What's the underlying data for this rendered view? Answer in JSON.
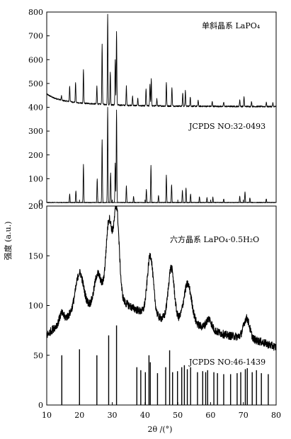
{
  "chart_data": {
    "type": "line",
    "xlabel": "2θ /(°)",
    "ylabel": "强度 (a.u.)",
    "xlim": [
      10,
      80
    ],
    "x_ticks": [
      "10",
      "20",
      "30",
      "40",
      "50",
      "60",
      "70",
      "80"
    ],
    "colors": {
      "line": "#000000",
      "background": "#ffffff"
    },
    "panels": [
      {
        "name": "top",
        "ylim": [
          0,
          800
        ],
        "y_ticks": [
          "0",
          "100",
          "200",
          "300",
          "400",
          "500",
          "600",
          "700",
          "800"
        ],
        "series": [
          {
            "name": "单斜晶系 LaPO₄",
            "kind": "pattern",
            "baseline": [
              [
                10,
                455
              ],
              [
                12,
                440
              ],
              [
                15,
                428
              ],
              [
                20,
                418
              ],
              [
                30,
                410
              ],
              [
                40,
                406
              ],
              [
                60,
                404
              ],
              [
                80,
                403
              ]
            ],
            "noise": 3,
            "peaks": [
              [
                14.5,
                18
              ],
              [
                17.0,
                65
              ],
              [
                18.8,
                85
              ],
              [
                21.2,
                140
              ],
              [
                25.3,
                75
              ],
              [
                26.9,
                250
              ],
              [
                28.6,
                380
              ],
              [
                29.4,
                140
              ],
              [
                30.9,
                190
              ],
              [
                31.3,
                310
              ],
              [
                34.3,
                80
              ],
              [
                36.2,
                40
              ],
              [
                37.8,
                30
              ],
              [
                40.3,
                70
              ],
              [
                41.5,
                90
              ],
              [
                41.9,
                115
              ],
              [
                43.6,
                30
              ],
              [
                46.5,
                100
              ],
              [
                48.2,
                80
              ],
              [
                51.5,
                55
              ],
              [
                52.3,
                65
              ],
              [
                53.8,
                40
              ],
              [
                56.2,
                25
              ],
              [
                60.5,
                20
              ],
              [
                64.0,
                18
              ],
              [
                68.9,
                28
              ],
              [
                70.2,
                40
              ],
              [
                72.5,
                22
              ],
              [
                77.0,
                18
              ],
              [
                79.0,
                15
              ]
            ]
          },
          {
            "name": "JCPDS NO:32-0493",
            "kind": "pattern",
            "baseline": [
              [
                10,
                0
              ],
              [
                80,
                0
              ]
            ],
            "noise": 1.5,
            "peaks": [
              [
                17.0,
                35
              ],
              [
                18.9,
                50
              ],
              [
                21.2,
                160
              ],
              [
                25.4,
                100
              ],
              [
                26.9,
                265
              ],
              [
                28.6,
                400
              ],
              [
                29.5,
                125
              ],
              [
                30.9,
                165
              ],
              [
                31.3,
                390
              ],
              [
                34.3,
                70
              ],
              [
                36.5,
                25
              ],
              [
                40.4,
                55
              ],
              [
                41.8,
                155
              ],
              [
                44.1,
                30
              ],
              [
                46.5,
                115
              ],
              [
                48.1,
                75
              ],
              [
                51.4,
                50
              ],
              [
                52.5,
                60
              ],
              [
                53.9,
                35
              ],
              [
                56.6,
                25
              ],
              [
                58.9,
                20
              ],
              [
                60.7,
                22
              ],
              [
                64.0,
                15
              ],
              [
                68.9,
                25
              ],
              [
                70.5,
                45
              ],
              [
                72.0,
                20
              ],
              [
                77.0,
                15
              ]
            ]
          }
        ]
      },
      {
        "name": "bottom",
        "ylim": [
          0,
          200
        ],
        "y_ticks": [
          "0",
          "50",
          "100",
          "150",
          "200"
        ],
        "series": [
          {
            "name": "六方晶系 LaPO₄·0.5H₂O",
            "kind": "broad",
            "baseline": [
              [
                10,
                70
              ],
              [
                13,
                80
              ],
              [
                16,
                88
              ],
              [
                20,
                98
              ],
              [
                24,
                100
              ],
              [
                27,
                108
              ],
              [
                30,
                112
              ],
              [
                33,
                105
              ],
              [
                36,
                98
              ],
              [
                40,
                92
              ],
              [
                44,
                88
              ],
              [
                48,
                85
              ],
              [
                52,
                82
              ],
              [
                56,
                80
              ],
              [
                60,
                76
              ],
              [
                65,
                70
              ],
              [
                70,
                68
              ],
              [
                75,
                64
              ],
              [
                80,
                58
              ]
            ],
            "noise": 4,
            "peaks": [
              [
                14.5,
                8,
                0.6
              ],
              [
                20.0,
                35,
                1.2
              ],
              [
                25.5,
                28,
                1.0
              ],
              [
                29.0,
                75,
                0.9
              ],
              [
                31.3,
                88,
                0.8
              ],
              [
                41.6,
                60,
                0.9
              ],
              [
                48.0,
                53,
                0.9
              ],
              [
                53.0,
                40,
                1.2
              ],
              [
                59.5,
                10,
                0.8
              ],
              [
                71.0,
                20,
                0.9
              ]
            ]
          },
          {
            "name": "JCPDS NO:46-1439",
            "kind": "sticks",
            "x": [
              14.6,
              20.0,
              25.3,
              28.9,
              31.3,
              37.5,
              38.7,
              40.1,
              41.2,
              41.6,
              43.8,
              46.3,
              47.5,
              48.4,
              49.9,
              51.2,
              52.0,
              52.9,
              53.9,
              56.0,
              57.6,
              58.5,
              59.1,
              61.0,
              62.1,
              64.0,
              66.1,
              68.1,
              69.2,
              70.6,
              71.2,
              72.7,
              74.0,
              75.5,
              77.6
            ],
            "values": [
              50,
              56,
              50,
              70,
              80,
              38,
              35,
              33,
              50,
              43,
              32,
              38,
              55,
              33,
              34,
              38,
              40,
              36,
              38,
              33,
              34,
              33,
              35,
              33,
              32,
              31,
              31,
              32,
              33,
              36,
              37,
              33,
              35,
              32,
              31
            ]
          }
        ]
      }
    ]
  }
}
